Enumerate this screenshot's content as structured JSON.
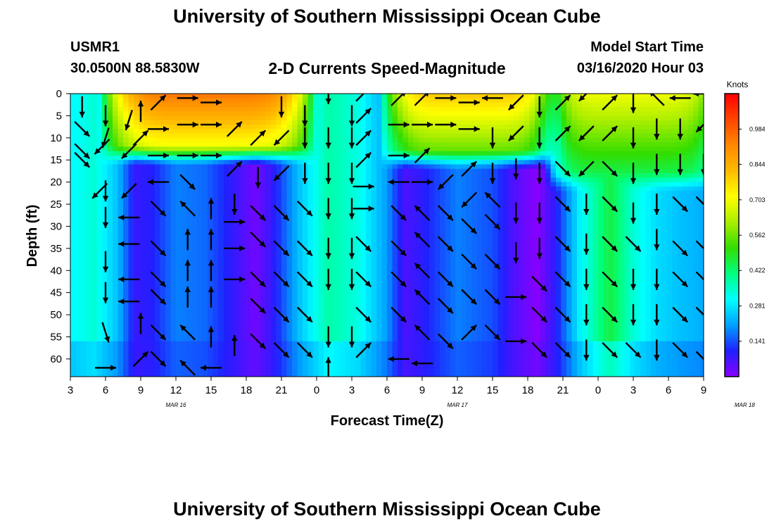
{
  "header": {
    "title": "University of Southern Mississippi Ocean Cube",
    "station": "USMR1",
    "coords": "30.0500N 88.5830W",
    "subtitle": "2-D Currents Speed-Magnitude",
    "model_start_label": "Model Start Time",
    "model_start_value": "03/16/2020 Hour 03"
  },
  "footer": {
    "title": "University of Southern Mississippi Ocean Cube"
  },
  "chart_data": {
    "type": "heatmap",
    "title": "2-D Currents Speed-Magnitude",
    "xlabel": "Forecast Time(Z)",
    "ylabel": "Depth (ft)",
    "x_ticks": [
      "3",
      "6",
      "9",
      "12",
      "15",
      "18",
      "21",
      "0",
      "3",
      "6",
      "9",
      "12",
      "15",
      "18",
      "21",
      "0",
      "3",
      "6",
      "9"
    ],
    "x_range_hours": [
      0,
      54
    ],
    "date_labels": [
      {
        "text": "MAR 16",
        "hour": 9
      },
      {
        "text": "MAR 17",
        "hour": 33
      },
      {
        "text": "MAR 18",
        "hour": 57.5
      }
    ],
    "y_ticks": [
      0,
      5,
      10,
      15,
      20,
      25,
      30,
      35,
      40,
      45,
      50,
      55,
      60
    ],
    "ylim": [
      0,
      64
    ],
    "colorbar": {
      "unit": "Knots",
      "labels": [
        "0.984",
        "0.844",
        "0.703",
        "0.562",
        "0.422",
        "0.281",
        "0.141"
      ],
      "range": [
        0,
        1.125
      ],
      "colors": [
        "#8800ff",
        "#2020ff",
        "#00a0ff",
        "#00ffff",
        "#00ff80",
        "#33dd00",
        "#aaee00",
        "#ffff00",
        "#ffbb00",
        "#ff8800",
        "#ff4400",
        "#ff0000"
      ]
    },
    "surface_layer": {
      "description": "High speed (orange/red) near surface in three pulses",
      "pulses": [
        {
          "start_hour": 4.0,
          "end_hour": 19.5,
          "bottom_depth_ft": 12,
          "peak_speed": 0.95
        },
        {
          "start_hour": 27.8,
          "end_hour": 40.2,
          "bottom_depth_ft": 13,
          "peak_speed": 0.8
        },
        {
          "start_hour": 42.0,
          "end_hour": 54,
          "bottom_depth_ft": 18,
          "peak_speed": 0.7
        }
      ]
    },
    "columns": [
      {
        "hour": 0,
        "speed": 0.3
      },
      {
        "hour": 2,
        "speed": 0.34
      },
      {
        "hour": 4,
        "speed": 0.24
      },
      {
        "hour": 5.5,
        "speed": 0.08
      },
      {
        "hour": 7,
        "speed": 0.1
      },
      {
        "hour": 9,
        "speed": 0.18
      },
      {
        "hour": 11.5,
        "speed": 0.16
      },
      {
        "hour": 14,
        "speed": 0.08
      },
      {
        "hour": 15.8,
        "speed": 0.02
      },
      {
        "hour": 17.5,
        "speed": 0.1
      },
      {
        "hour": 19.5,
        "speed": 0.24
      },
      {
        "hour": 22,
        "speed": 0.38
      },
      {
        "hour": 24.5,
        "speed": 0.33
      },
      {
        "hour": 27,
        "speed": 0.2
      },
      {
        "hour": 28.5,
        "speed": 0.06
      },
      {
        "hour": 30,
        "speed": 0.09
      },
      {
        "hour": 33,
        "speed": 0.18
      },
      {
        "hour": 36,
        "speed": 0.14
      },
      {
        "hour": 38,
        "speed": 0.05
      },
      {
        "hour": 39.8,
        "speed": 0.0
      },
      {
        "hour": 41.5,
        "speed": 0.1
      },
      {
        "hour": 43.5,
        "speed": 0.3
      },
      {
        "hour": 46,
        "speed": 0.46
      },
      {
        "hour": 48,
        "speed": 0.34
      },
      {
        "hour": 50,
        "speed": 0.27
      },
      {
        "hour": 52,
        "speed": 0.24
      },
      {
        "hour": 54,
        "speed": 0.22
      }
    ],
    "arrows": [
      [
        1,
        3,
        "S"
      ],
      [
        1,
        8,
        "SE"
      ],
      [
        1,
        13,
        "SE"
      ],
      [
        1,
        15,
        "SE"
      ],
      [
        2.7,
        12,
        "SW"
      ],
      [
        2.5,
        22,
        "SW"
      ],
      [
        3,
        5,
        "S"
      ],
      [
        3,
        10,
        "SSW"
      ],
      [
        3,
        22,
        "S"
      ],
      [
        3,
        28,
        "S"
      ],
      [
        3,
        38,
        "S"
      ],
      [
        3,
        45,
        "S"
      ],
      [
        3,
        54,
        "SSE"
      ],
      [
        3,
        62,
        "E"
      ],
      [
        5,
        6,
        "SSW"
      ],
      [
        5,
        13,
        "SW"
      ],
      [
        5,
        22,
        "SW"
      ],
      [
        5,
        28,
        "W"
      ],
      [
        5,
        34,
        "W"
      ],
      [
        5,
        42,
        "W"
      ],
      [
        5,
        47,
        "W"
      ],
      [
        6,
        4,
        "N"
      ],
      [
        6,
        10,
        "NE"
      ],
      [
        6,
        52,
        "N"
      ],
      [
        6,
        60,
        "NE"
      ],
      [
        7.5,
        2,
        "NE"
      ],
      [
        7.5,
        8,
        "E"
      ],
      [
        7.5,
        14,
        "E"
      ],
      [
        7.5,
        20,
        "W"
      ],
      [
        7.5,
        26,
        "SE"
      ],
      [
        7.5,
        35,
        "SE"
      ],
      [
        7.5,
        42,
        "SE"
      ],
      [
        7.5,
        46,
        "SE"
      ],
      [
        7.5,
        54,
        "SE"
      ],
      [
        7.5,
        60,
        "SE"
      ],
      [
        10,
        1,
        "E"
      ],
      [
        10,
        7,
        "E"
      ],
      [
        10,
        14,
        "E"
      ],
      [
        10,
        20,
        "SE"
      ],
      [
        10,
        26,
        "NW"
      ],
      [
        10,
        33,
        "N"
      ],
      [
        10,
        40,
        "N"
      ],
      [
        10,
        46,
        "N"
      ],
      [
        10,
        54,
        "NW"
      ],
      [
        10,
        62,
        "NW"
      ],
      [
        12,
        2,
        "E"
      ],
      [
        12,
        7,
        "E"
      ],
      [
        12,
        14,
        "E"
      ],
      [
        12,
        26,
        "N"
      ],
      [
        12,
        33,
        "N"
      ],
      [
        12,
        40,
        "N"
      ],
      [
        12,
        46,
        "N"
      ],
      [
        12,
        55,
        "N"
      ],
      [
        12,
        62,
        "W"
      ],
      [
        14,
        8,
        "NE"
      ],
      [
        14,
        17,
        "NE"
      ],
      [
        14,
        25,
        "S"
      ],
      [
        14,
        29,
        "E"
      ],
      [
        14,
        35,
        "E"
      ],
      [
        14,
        42,
        "E"
      ],
      [
        14,
        57,
        "N"
      ],
      [
        16,
        10,
        "NE"
      ],
      [
        16,
        19,
        "S"
      ],
      [
        16,
        27,
        "SE"
      ],
      [
        16,
        33,
        "SE"
      ],
      [
        16,
        42,
        "SE"
      ],
      [
        16,
        48,
        "SE"
      ],
      [
        16,
        56,
        "SE"
      ],
      [
        18,
        3,
        "S"
      ],
      [
        18,
        10,
        "SW"
      ],
      [
        18,
        18,
        "SW"
      ],
      [
        18,
        27,
        "SE"
      ],
      [
        18,
        35,
        "SE"
      ],
      [
        18,
        42,
        "SE"
      ],
      [
        18,
        50,
        "SE"
      ],
      [
        18,
        58,
        "SE"
      ],
      [
        20,
        5,
        "S"
      ],
      [
        20,
        10,
        "S"
      ],
      [
        20,
        18,
        "S"
      ],
      [
        20,
        26,
        "SE"
      ],
      [
        20,
        35,
        "SE"
      ],
      [
        20,
        42,
        "SE"
      ],
      [
        20,
        50,
        "SE"
      ],
      [
        20,
        58,
        "SE"
      ],
      [
        22,
        0,
        "S"
      ],
      [
        22,
        10,
        "S"
      ],
      [
        22,
        18,
        "S"
      ],
      [
        22,
        26,
        "S"
      ],
      [
        22,
        35,
        "S"
      ],
      [
        22,
        42,
        "S"
      ],
      [
        22,
        55,
        "S"
      ],
      [
        22,
        62,
        "N"
      ],
      [
        24,
        5,
        "S"
      ],
      [
        24,
        10,
        "S"
      ],
      [
        24,
        18,
        "S"
      ],
      [
        24,
        26,
        "S"
      ],
      [
        24,
        35,
        "S"
      ],
      [
        24,
        42,
        "S"
      ],
      [
        24,
        55,
        "S"
      ],
      [
        25,
        0,
        "NE"
      ],
      [
        25,
        5,
        "NE"
      ],
      [
        25,
        10,
        "NE"
      ],
      [
        25,
        15,
        "NE"
      ],
      [
        25,
        21,
        "E"
      ],
      [
        25,
        26,
        "E"
      ],
      [
        25,
        34,
        "SE"
      ],
      [
        25,
        42,
        "SE"
      ],
      [
        25,
        50,
        "SE"
      ],
      [
        25,
        58,
        "NE"
      ],
      [
        28,
        1,
        "NE"
      ],
      [
        28,
        7,
        "E"
      ],
      [
        28,
        14,
        "E"
      ],
      [
        28,
        20,
        "W"
      ],
      [
        28,
        27,
        "SE"
      ],
      [
        28,
        35,
        "SE"
      ],
      [
        28,
        42,
        "SE"
      ],
      [
        28,
        50,
        "SE"
      ],
      [
        28,
        60,
        "W"
      ],
      [
        30,
        1,
        "NE"
      ],
      [
        30,
        7,
        "E"
      ],
      [
        30,
        14,
        "NE"
      ],
      [
        30,
        20,
        "E"
      ],
      [
        30,
        27,
        "NW"
      ],
      [
        30,
        33,
        "NW"
      ],
      [
        30,
        40,
        "NW"
      ],
      [
        30,
        46,
        "NW"
      ],
      [
        30,
        54,
        "NW"
      ],
      [
        30,
        61,
        "W"
      ],
      [
        32,
        1,
        "E"
      ],
      [
        32,
        7,
        "E"
      ],
      [
        32,
        20,
        "SW"
      ],
      [
        32,
        27,
        "SE"
      ],
      [
        32,
        34,
        "SE"
      ],
      [
        32,
        42,
        "SE"
      ],
      [
        32,
        48,
        "SE"
      ],
      [
        32,
        56,
        "SE"
      ],
      [
        34,
        2,
        "E"
      ],
      [
        34,
        8,
        "E"
      ],
      [
        34,
        17,
        "NE"
      ],
      [
        34,
        24,
        "SW"
      ],
      [
        34,
        30,
        "SE"
      ],
      [
        34,
        38,
        "SE"
      ],
      [
        34,
        46,
        "SE"
      ],
      [
        34,
        54,
        "NE"
      ],
      [
        36,
        1,
        "W"
      ],
      [
        36,
        10,
        "S"
      ],
      [
        36,
        18,
        "S"
      ],
      [
        36,
        24,
        "NW"
      ],
      [
        36,
        29,
        "SE"
      ],
      [
        36,
        38,
        "SE"
      ],
      [
        36,
        46,
        "SE"
      ],
      [
        36,
        54,
        "SE"
      ],
      [
        38,
        2,
        "SW"
      ],
      [
        38,
        9,
        "SW"
      ],
      [
        38,
        17,
        "S"
      ],
      [
        38,
        27,
        "S"
      ],
      [
        38,
        36,
        "S"
      ],
      [
        38,
        46,
        "E"
      ],
      [
        38,
        56,
        "E"
      ],
      [
        40,
        3,
        "S"
      ],
      [
        40,
        10,
        "S"
      ],
      [
        40,
        18,
        "S"
      ],
      [
        40,
        27,
        "S"
      ],
      [
        40,
        35,
        "S"
      ],
      [
        40,
        43,
        "SE"
      ],
      [
        40,
        50,
        "SE"
      ],
      [
        40,
        58,
        "SE"
      ],
      [
        42,
        2,
        "NE"
      ],
      [
        42,
        9,
        "NE"
      ],
      [
        42,
        17,
        "SE"
      ],
      [
        42,
        25,
        "SE"
      ],
      [
        42,
        34,
        "SE"
      ],
      [
        42,
        42,
        "SE"
      ],
      [
        42,
        50,
        "SE"
      ],
      [
        42,
        58,
        "SE"
      ],
      [
        44,
        0,
        "SW"
      ],
      [
        44,
        9,
        "SW"
      ],
      [
        44,
        17,
        "SW"
      ],
      [
        44,
        25,
        "S"
      ],
      [
        44,
        34,
        "S"
      ],
      [
        44,
        42,
        "S"
      ],
      [
        44,
        50,
        "S"
      ],
      [
        44,
        58,
        "S"
      ],
      [
        46,
        2,
        "NE"
      ],
      [
        46,
        9,
        "NE"
      ],
      [
        46,
        17,
        "SE"
      ],
      [
        46,
        25,
        "SE"
      ],
      [
        46,
        34,
        "SE"
      ],
      [
        46,
        42,
        "SE"
      ],
      [
        46,
        50,
        "SE"
      ],
      [
        46,
        58,
        "SE"
      ],
      [
        48,
        2,
        "S"
      ],
      [
        48,
        10,
        "S"
      ],
      [
        48,
        18,
        "S"
      ],
      [
        48,
        27,
        "S"
      ],
      [
        48,
        34,
        "SE"
      ],
      [
        48,
        42,
        "S"
      ],
      [
        48,
        50,
        "S"
      ],
      [
        48,
        58,
        "SE"
      ],
      [
        50,
        1,
        "NW"
      ],
      [
        50,
        8,
        "S"
      ],
      [
        50,
        16,
        "S"
      ],
      [
        50,
        25,
        "S"
      ],
      [
        50,
        33,
        "S"
      ],
      [
        50,
        42,
        "S"
      ],
      [
        50,
        50,
        "S"
      ],
      [
        50,
        58,
        "S"
      ],
      [
        52,
        1,
        "W"
      ],
      [
        52,
        8,
        "S"
      ],
      [
        52,
        16,
        "S"
      ],
      [
        52,
        25,
        "SE"
      ],
      [
        52,
        35,
        "SE"
      ],
      [
        52,
        42,
        "SE"
      ],
      [
        52,
        50,
        "SE"
      ],
      [
        52,
        58,
        "SE"
      ],
      [
        54,
        0,
        "W"
      ],
      [
        54,
        7,
        "SW"
      ],
      [
        54,
        16,
        "S"
      ],
      [
        54,
        25,
        "SE"
      ],
      [
        54,
        35,
        "SE"
      ],
      [
        54,
        42,
        "SE"
      ],
      [
        54,
        50,
        "SE"
      ],
      [
        54,
        60,
        "SE"
      ]
    ]
  }
}
